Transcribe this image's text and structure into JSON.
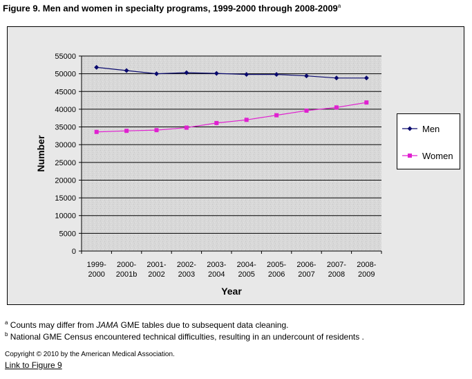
{
  "figure": {
    "title": "Figure 9. Men and women in specialty programs, 1999-2000 through 2008-2009",
    "title_sup": "a"
  },
  "colors": {
    "men": "#0a0a6e",
    "women": "#e020d0",
    "chart_bg": "#e8e8e8",
    "plot_bg": "#d6d6d6"
  },
  "chart_data": {
    "type": "line",
    "categories": [
      [
        "1999-",
        "2000"
      ],
      [
        "2000-",
        "2001b"
      ],
      [
        "2001-",
        "2002"
      ],
      [
        "2002-",
        "2003"
      ],
      [
        "2003-",
        "2004"
      ],
      [
        "2004-",
        "2005"
      ],
      [
        "2005-",
        "2006"
      ],
      [
        "2006-",
        "2007"
      ],
      [
        "2007-",
        "2008"
      ],
      [
        "2008-",
        "2009"
      ]
    ],
    "series": [
      {
        "name": "Men",
        "marker": "diamond",
        "values": [
          51800,
          50900,
          50000,
          50300,
          50100,
          49800,
          49800,
          49400,
          48800,
          48800
        ]
      },
      {
        "name": "Women",
        "marker": "square",
        "values": [
          33600,
          33900,
          34100,
          34800,
          36100,
          37000,
          38300,
          39600,
          40500,
          41900
        ]
      }
    ],
    "xlabel": "Year",
    "ylabel": "Number",
    "ylim": [
      0,
      55000
    ],
    "yticks": [
      0,
      5000,
      10000,
      15000,
      20000,
      25000,
      30000,
      35000,
      40000,
      45000,
      50000,
      55000
    ],
    "grid": true,
    "legend": "right"
  },
  "notes": [
    {
      "sup": "a",
      "pre": "Counts may differ from ",
      "em": "JAMA",
      "post": " GME tables due to subsequent data cleaning."
    },
    {
      "sup": "b",
      "pre": "National GME Census encountered technical difficulties, resulting in an undercount of residents .",
      "em": "",
      "post": ""
    }
  ],
  "copyright": "Copyright © 2010 by the American Medical Association.",
  "link": "Link to Figure 9"
}
